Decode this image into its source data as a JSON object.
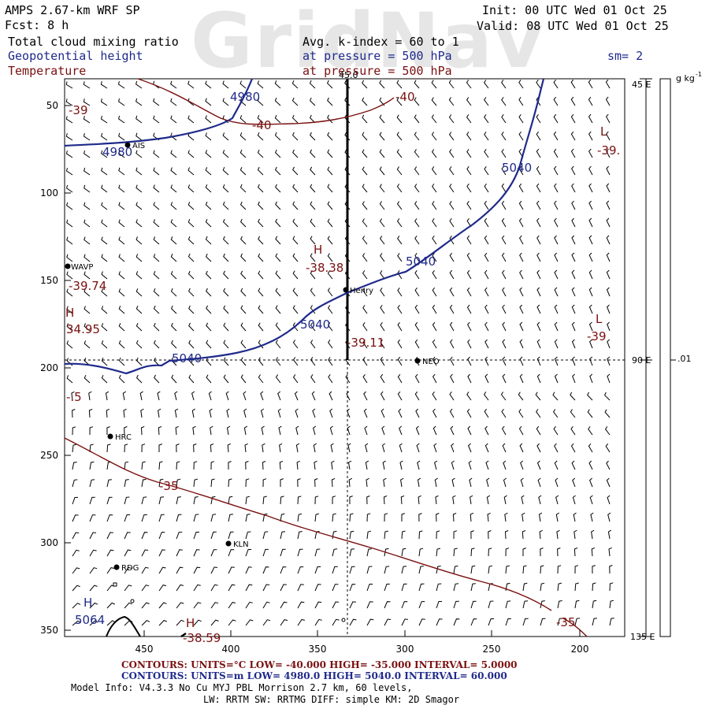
{
  "watermark": "GridNav",
  "header": {
    "model": "AMPS 2.67-km WRF SP",
    "fcst": "Fcst:    8 h",
    "field1": "Total cloud mixing ratio",
    "field2": "Geopotential height",
    "field3": "Temperature",
    "avg": "Avg. k-index =  60 to    1",
    "pressure1": "at pressure =  500 hPa",
    "pressure2": "at pressure =  500 hPa",
    "sm": "sm= 2",
    "init": "Init: 00 UTC Wed 01 Oct 25",
    "valid": "Valid: 08 UTC Wed 01 Oct 25"
  },
  "map": {
    "y_ticks": [
      "50",
      "100",
      "150",
      "200",
      "250",
      "300",
      "350"
    ],
    "x_ticks": [
      "450",
      "400",
      "350",
      "300",
      "250",
      "200"
    ],
    "right_labels": [
      "45 E",
      "90 E",
      "135 E"
    ],
    "top_label": "45.0",
    "colorbar_unit": "g kg",
    "colorbar_exp": "-1",
    "colorbar_value": ".01",
    "stations": [
      "AIS",
      "WAVP",
      "Henry",
      "NEO",
      "HRC",
      "KLN",
      "RDG"
    ],
    "geopotential_labels": [
      "4980",
      "4980",
      "5040",
      "5040",
      "5040",
      "5040",
      "5064"
    ],
    "temperature_labels": [
      "-40",
      "-40",
      "-35",
      "-35",
      "-39",
      "-39.",
      "-39",
      "-38.38",
      "-39.74",
      "-39.11",
      "34.95",
      "-.5",
      "-38.59"
    ],
    "extrema": [
      "H",
      "H",
      "H",
      "H",
      "L",
      "L"
    ]
  },
  "footer": {
    "temp_contours": "CONTOURS:  UNITS=°C  LOW= -40.000      HIGH= -35.000      INTERVAL=   5.0000",
    "height_contours": "CONTOURS:  UNITS=m  LOW=  4980.0       HIGH=  5040.0       INTERVAL=  60.000",
    "model_info": "Model Info: V4.3.3    No Cu    MYJ PBL  Morrison          2.7 km,  60 levels,",
    "physics": "LW: RRTM SW: RRTMG   DIFF: simple KM: 2D Smagor"
  },
  "colors": {
    "navy": "#1f2a8a",
    "maroon": "#7a1010",
    "black": "#000000"
  }
}
